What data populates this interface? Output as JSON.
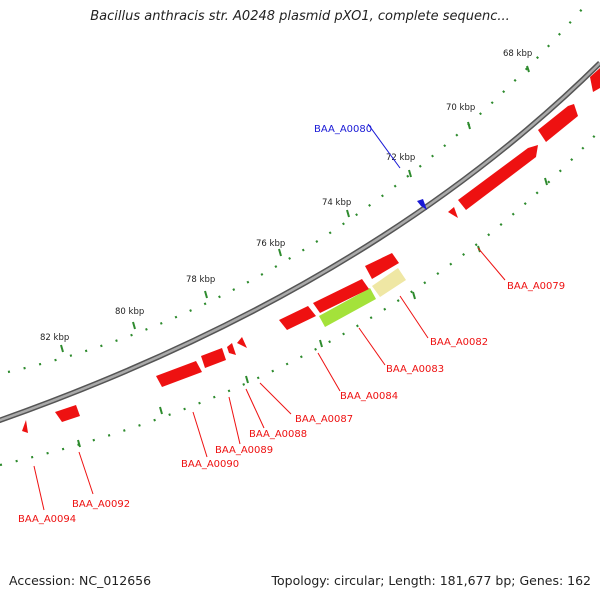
{
  "title": "Bacillus anthracis str. A0248 plasmid pXO1, complete sequenc...",
  "footer": {
    "accession": "Accession: NC_012656",
    "stats": "Topology: circular; Length: 181,677 bp; Genes: 162"
  },
  "colors": {
    "cds": "#ee1111",
    "selected_cds": "#1a1ad6",
    "highlight_green": "#a4e23a",
    "highlight_yellow": "#efe7a4",
    "backbone": "#888888",
    "tick_ring": "#2e8b2e"
  },
  "scale": {
    "unit": "kbp",
    "labels": [
      "68 kbp",
      "70 kbp",
      "72 kbp",
      "74 kbp",
      "76 kbp",
      "78 kbp",
      "80 kbp",
      "82 kbp"
    ]
  },
  "genes": [
    {
      "name": "BAA_A0079",
      "highlighted": false
    },
    {
      "name": "BAA_A0080",
      "highlighted": true
    },
    {
      "name": "BAA_A0082",
      "highlighted": false
    },
    {
      "name": "BAA_A0083",
      "highlighted": false
    },
    {
      "name": "BAA_A0084",
      "highlighted": false
    },
    {
      "name": "BAA_A0087",
      "highlighted": false
    },
    {
      "name": "BAA_A0088",
      "highlighted": false
    },
    {
      "name": "BAA_A0089",
      "highlighted": false
    },
    {
      "name": "BAA_A0090",
      "highlighted": false
    },
    {
      "name": "BAA_A0092",
      "highlighted": false
    },
    {
      "name": "BAA_A0094",
      "highlighted": false
    }
  ]
}
